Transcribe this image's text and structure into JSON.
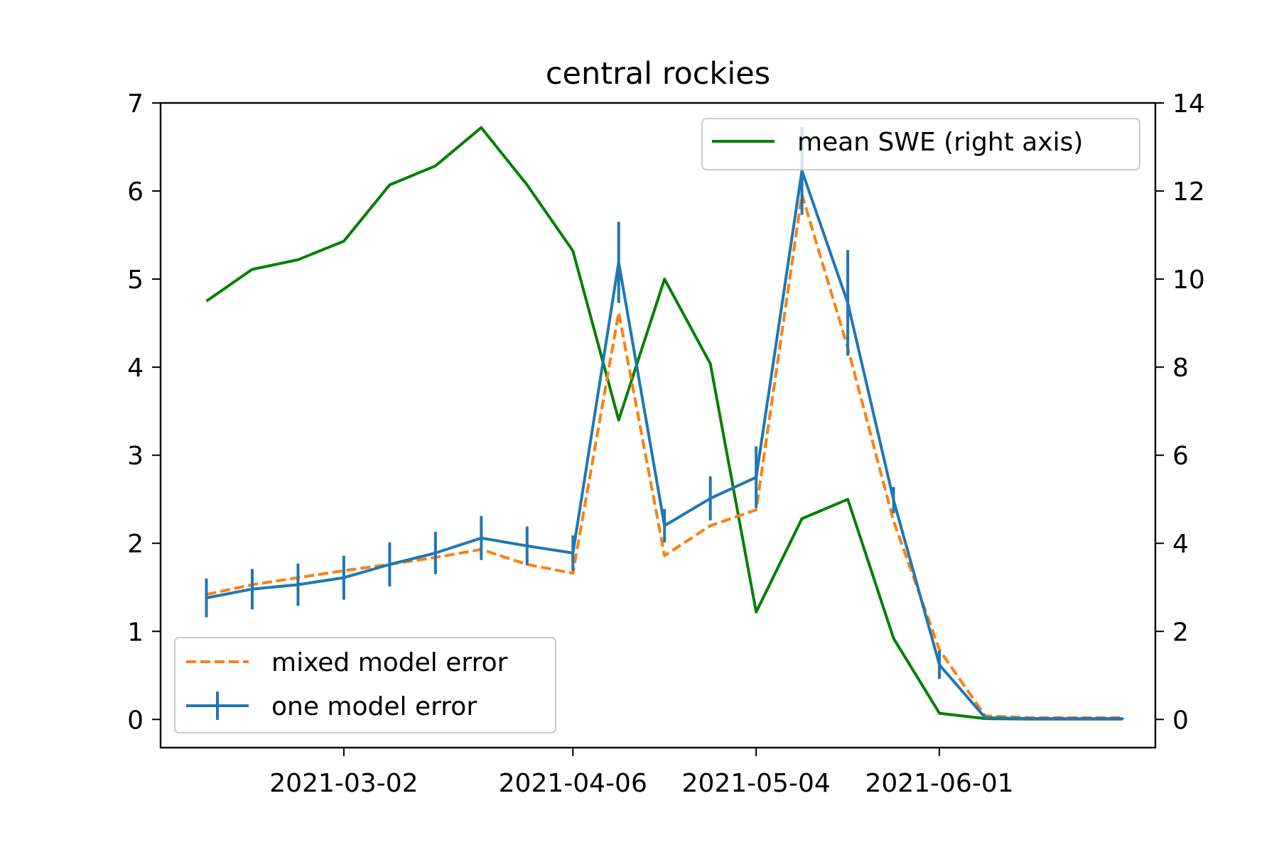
{
  "chart_data": {
    "type": "line",
    "title": "central rockies",
    "xlabel": "",
    "ylabel": "",
    "x_tick_labels": [
      "2021-03-02",
      "2021-04-06",
      "2021-05-04",
      "2021-06-01"
    ],
    "x_tick_dates": [
      "2021-03-02",
      "2021-04-06",
      "2021-05-04",
      "2021-06-01"
    ],
    "x": [
      "2021-02-09",
      "2021-02-16",
      "2021-02-23",
      "2021-03-02",
      "2021-03-09",
      "2021-03-16",
      "2021-03-23",
      "2021-03-30",
      "2021-04-06",
      "2021-04-13",
      "2021-04-20",
      "2021-04-27",
      "2021-05-04",
      "2021-05-11",
      "2021-05-18",
      "2021-05-25",
      "2021-06-01",
      "2021-06-08",
      "2021-06-15",
      "2021-06-22",
      "2021-06-29"
    ],
    "x_range": [
      "2021-02-02",
      "2021-07-04"
    ],
    "left_axis": {
      "ylim": [
        -0.32,
        7
      ],
      "ticks": [
        0,
        1,
        2,
        3,
        4,
        5,
        6,
        7
      ]
    },
    "right_axis": {
      "ylim": [
        -0.64,
        14
      ],
      "ticks": [
        0,
        2,
        4,
        6,
        8,
        10,
        12,
        14
      ]
    },
    "series": [
      {
        "name": "mixed model error",
        "axis": "left",
        "color": "#ff7f0e",
        "style": "dashed",
        "values": [
          1.42,
          1.53,
          1.61,
          1.69,
          1.76,
          1.84,
          1.93,
          1.76,
          1.66,
          4.62,
          1.86,
          2.2,
          2.38,
          5.96,
          4.22,
          2.25,
          0.79,
          0.04,
          0.02,
          0.02,
          0.02
        ]
      },
      {
        "name": "one model error",
        "axis": "left",
        "color": "#1f77b4",
        "style": "solid",
        "error_bars": true,
        "values": [
          1.38,
          1.48,
          1.53,
          1.61,
          1.76,
          1.89,
          2.06,
          1.97,
          1.89,
          5.19,
          2.2,
          2.51,
          2.75,
          6.23,
          4.73,
          2.49,
          0.62,
          0.02,
          0.01,
          0.01,
          0.01
        ],
        "errors": [
          0.22,
          0.23,
          0.24,
          0.25,
          0.25,
          0.24,
          0.25,
          0.22,
          0.2,
          0.46,
          0.19,
          0.25,
          0.35,
          0.5,
          0.6,
          0.15,
          0.16,
          0.02,
          0.01,
          0.01,
          0.01
        ]
      },
      {
        "name": "mean SWE (right axis)",
        "axis": "right",
        "color": "#008000",
        "style": "solid",
        "values": [
          9.5,
          10.22,
          10.44,
          10.86,
          12.14,
          12.57,
          13.44,
          12.14,
          10.64,
          6.8,
          10.0,
          8.08,
          2.44,
          4.56,
          5.0,
          1.84,
          0.14,
          0.02,
          0.01,
          0.01,
          0.01
        ]
      }
    ],
    "legends": [
      {
        "placement": "upper-right",
        "entries": [
          "mean SWE (right axis)"
        ]
      },
      {
        "placement": "lower-left",
        "entries": [
          "mixed model error",
          "one model error"
        ]
      }
    ],
    "grid": false
  }
}
